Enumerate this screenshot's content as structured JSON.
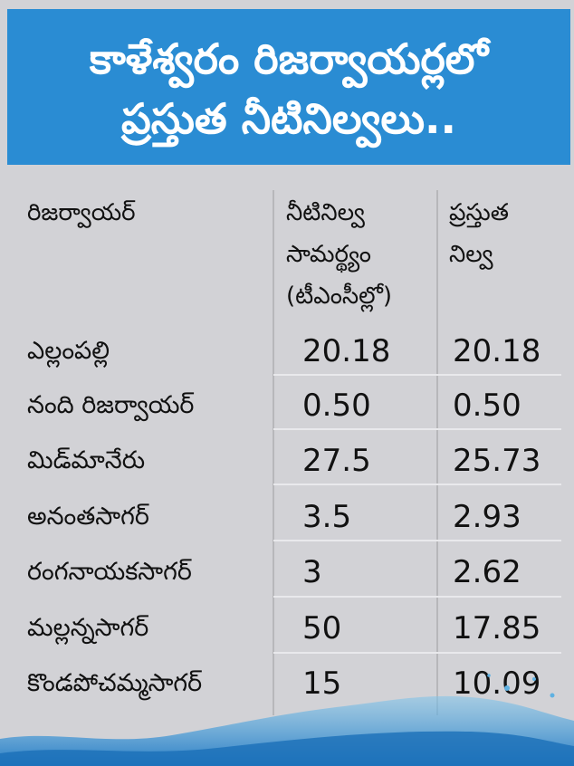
{
  "title": {
    "line1": "కాళేశ్వరం రిజర్వాయర్లలో",
    "line2": "ప్రస్తుత నీటినిల్వలు.."
  },
  "table": {
    "headers": {
      "col1": "రిజర్వాయర్",
      "col2_line1": "నీటినిల్వ",
      "col2_line2": "సామర్థ్యం",
      "col2_line3": "(టీఎంసీల్లో)",
      "col3_line1": "ప్రస్తుత",
      "col3_line2": "నిల్వ"
    },
    "rows": [
      {
        "name": "ఎల్లంపల్లి",
        "capacity": "20.18",
        "current": "20.18"
      },
      {
        "name": "నంది రిజర్వాయర్",
        "capacity": "0.50",
        "current": "0.50"
      },
      {
        "name": "మిడ్‌మానేరు",
        "capacity": "27.5",
        "current": "25.73"
      },
      {
        "name": "అనంతసాగర్",
        "capacity": "3.5",
        "current": "2.93"
      },
      {
        "name": "రంగనాయకసాగర్",
        "capacity": "3",
        "current": "2.62"
      },
      {
        "name": "మల్లన్నసాగర్",
        "capacity": "50",
        "current": "17.85"
      },
      {
        "name": "కొండపోచమ్మసాగర్",
        "capacity": "15",
        "current": "10.09"
      }
    ]
  },
  "colors": {
    "header_bg": "#2a8cd3",
    "body_bg": "#d2d2d6",
    "header_text": "#ffffff"
  }
}
